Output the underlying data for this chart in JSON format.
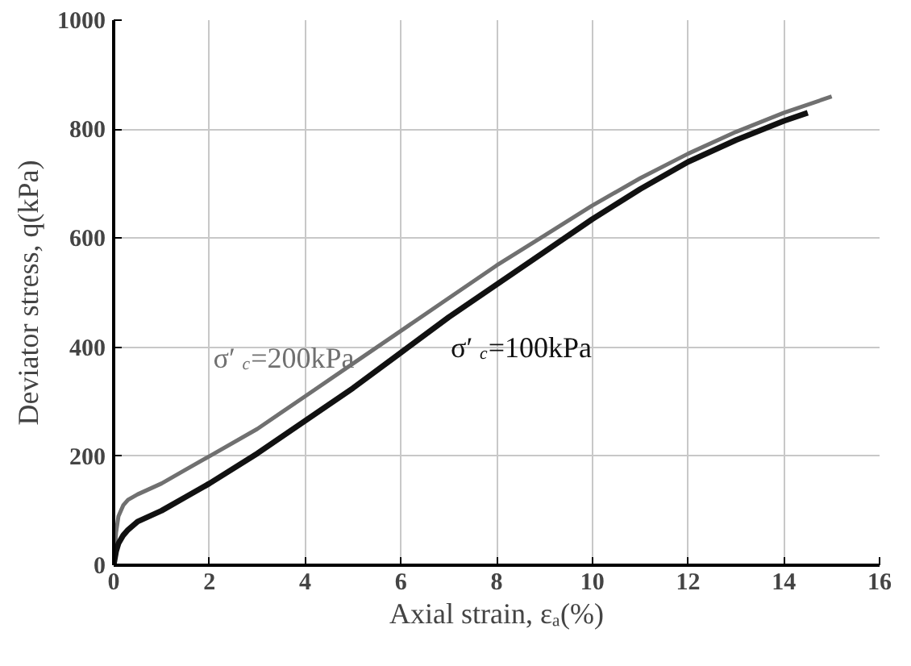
{
  "chart_data": {
    "type": "line",
    "xlabel": "Axial strain, εₐ(%)",
    "ylabel": "Deviator stress, q(kPa)",
    "xlim": [
      0,
      16
    ],
    "xticks": [
      0,
      2,
      4,
      6,
      8,
      10,
      12,
      14,
      16
    ],
    "ylim": [
      0,
      1000
    ],
    "yticks": [
      0,
      200,
      400,
      600,
      800,
      1000
    ],
    "grid": true,
    "marker": "none",
    "line_style": "solid",
    "series": [
      {
        "name": "σ′$_{c}$=200kPa",
        "color": "#707070",
        "x": [
          0,
          0.05,
          0.1,
          0.2,
          0.3,
          0.5,
          0.75,
          1,
          1.5,
          2,
          3,
          4,
          5,
          6,
          7,
          8,
          9,
          10,
          11,
          12,
          13,
          14,
          15
        ],
        "values": [
          0,
          60,
          90,
          110,
          120,
          130,
          140,
          150,
          175,
          200,
          250,
          310,
          370,
          430,
          490,
          550,
          605,
          660,
          710,
          755,
          795,
          830,
          860
        ]
      },
      {
        "name": "σ′$_{c}$=100kPa",
        "color": "#111111",
        "x": [
          0,
          0.05,
          0.1,
          0.2,
          0.3,
          0.5,
          0.75,
          1,
          1.5,
          2,
          3,
          4,
          5,
          6,
          7,
          8,
          9,
          10,
          11,
          12,
          13,
          14,
          14.5
        ],
        "values": [
          0,
          25,
          40,
          55,
          65,
          80,
          90,
          100,
          125,
          150,
          205,
          265,
          325,
          390,
          455,
          515,
          575,
          635,
          690,
          740,
          780,
          815,
          830
        ]
      }
    ]
  }
}
